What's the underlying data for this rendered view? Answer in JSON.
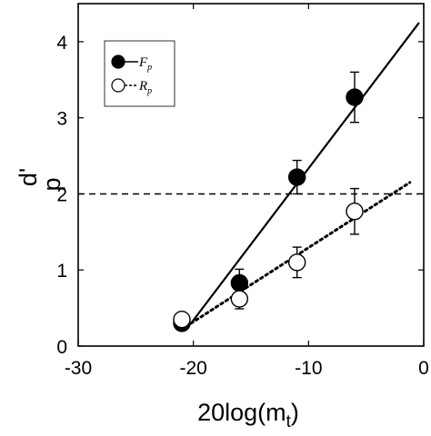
{
  "chart_data": {
    "type": "scatter",
    "title": "",
    "xlabel_main": "20log(m",
    "xlabel_sub": "t",
    "xlabel_tail": ")",
    "ylabel_main": "d'",
    "ylabel_sub": "p",
    "xlim": [
      -30,
      0
    ],
    "ylim": [
      0,
      4.5
    ],
    "xticks": [
      -30,
      -20,
      -10,
      0
    ],
    "yticks": [
      0,
      1,
      2,
      3,
      4
    ],
    "grid": false,
    "legend_position": "top-left",
    "series": [
      {
        "name": "F",
        "name_sub": "p",
        "marker": "filled-circle",
        "line_style": "solid",
        "color": "#000000",
        "x": [
          -21,
          -16,
          -11,
          -6
        ],
        "y": [
          0.3,
          0.83,
          2.22,
          3.27
        ],
        "err": [
          0.08,
          0.18,
          0.22,
          0.33
        ],
        "fit": [
          [
            -20.2,
            0.3
          ],
          [
            -0.4,
            4.25
          ]
        ]
      },
      {
        "name": "R",
        "name_sub": "p",
        "marker": "open-circle",
        "line_style": "dotted",
        "color": "#000000",
        "x": [
          -21,
          -16,
          -11,
          -6
        ],
        "y": [
          0.35,
          0.62,
          1.1,
          1.77
        ],
        "err": [
          0.08,
          0.13,
          0.2,
          0.3
        ],
        "fit": [
          [
            -20.2,
            0.3
          ],
          [
            -1.2,
            2.15
          ]
        ]
      }
    ],
    "reference_line": {
      "y": 2,
      "line_style": "dashed"
    }
  }
}
